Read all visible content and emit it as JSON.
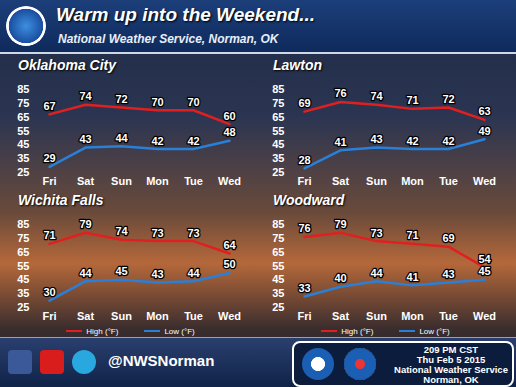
{
  "header": {
    "title": "Warm up into the Weekend...",
    "subtitle": "National Weather Service, Norman, OK"
  },
  "chart_data": [
    {
      "type": "line",
      "title": "Oklahoma City",
      "categories": [
        "Fri",
        "Sat",
        "Sun",
        "Mon",
        "Tue",
        "Wed"
      ],
      "series": [
        {
          "name": "High (°F)",
          "color": "#e02020",
          "values": [
            67,
            74,
            72,
            70,
            70,
            60
          ]
        },
        {
          "name": "Low (°F)",
          "color": "#2a7fd6",
          "values": [
            29,
            43,
            44,
            42,
            42,
            48
          ]
        }
      ],
      "ylim": [
        25,
        85
      ],
      "yticks": [
        25,
        35,
        45,
        55,
        65,
        75,
        85
      ],
      "data_labels": true
    },
    {
      "type": "line",
      "title": "Lawton",
      "categories": [
        "Fri",
        "Sat",
        "Sun",
        "Mon",
        "Tue",
        "Wed"
      ],
      "series": [
        {
          "name": "High (°F)",
          "color": "#e02020",
          "values": [
            69,
            76,
            74,
            71,
            72,
            63
          ]
        },
        {
          "name": "Low (°F)",
          "color": "#2a7fd6",
          "values": [
            28,
            41,
            43,
            42,
            42,
            49
          ]
        }
      ],
      "ylim": [
        25,
        85
      ],
      "yticks": [
        25,
        35,
        45,
        55,
        65,
        75,
        85
      ],
      "data_labels": true
    },
    {
      "type": "line",
      "title": "Wichita Falls",
      "categories": [
        "Fri",
        "Sat",
        "Sun",
        "Mon",
        "Tue",
        "Wed"
      ],
      "series": [
        {
          "name": "High (°F)",
          "color": "#e02020",
          "values": [
            71,
            79,
            74,
            73,
            73,
            64
          ]
        },
        {
          "name": "Low (°F)",
          "color": "#2a7fd6",
          "values": [
            30,
            44,
            45,
            43,
            44,
            50
          ]
        }
      ],
      "ylim": [
        25,
        85
      ],
      "yticks": [
        25,
        35,
        45,
        55,
        65,
        75,
        85
      ],
      "data_labels": true,
      "legend": "bottom"
    },
    {
      "type": "line",
      "title": "Woodward",
      "categories": [
        "Fri",
        "Sat",
        "Sun",
        "Mon",
        "Tue",
        "Wed"
      ],
      "series": [
        {
          "name": "High (°F)",
          "color": "#e02020",
          "values": [
            76,
            79,
            73,
            71,
            69,
            54
          ]
        },
        {
          "name": "Low (°F)",
          "color": "#2a7fd6",
          "values": [
            33,
            40,
            44,
            41,
            43,
            45
          ]
        }
      ],
      "ylim": [
        25,
        85
      ],
      "yticks": [
        25,
        35,
        45,
        55,
        65,
        75,
        85
      ],
      "data_labels": true,
      "legend": "bottom"
    }
  ],
  "footer": {
    "handle": "@NWSNorman",
    "time": "209 PM CST",
    "date": "Thu Feb 5 2015",
    "office": "National Weather Service",
    "location": "Norman, OK"
  }
}
